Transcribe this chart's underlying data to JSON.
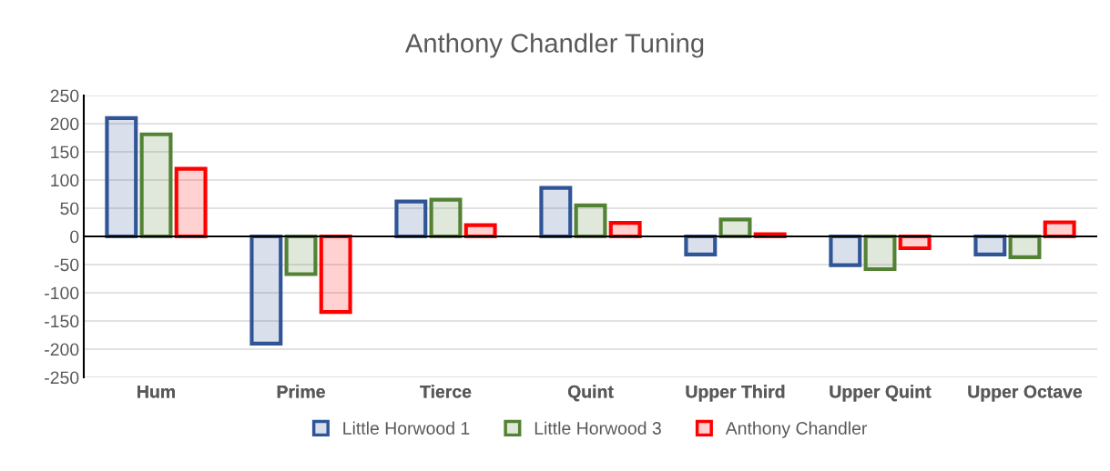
{
  "chart_data": {
    "type": "bar",
    "title": "Anthony Chandler Tuning",
    "categories": [
      "Hum",
      "Prime",
      "Tierce",
      "Quint",
      "Upper Third",
      "Upper Quint",
      "Upper Octave"
    ],
    "series": [
      {
        "name": "Little Horwood 1",
        "color": "#2f5597",
        "values": [
          210,
          -190,
          62,
          86,
          -32,
          -51,
          -32
        ]
      },
      {
        "name": "Little Horwood 3",
        "color": "#548235",
        "values": [
          181,
          -67,
          65,
          55,
          30,
          -58,
          -37
        ]
      },
      {
        "name": "Anthony Chandler",
        "color": "#ff0000",
        "values": [
          120,
          -134,
          20,
          24,
          4,
          -21,
          25
        ]
      }
    ],
    "ylim": [
      -250,
      250
    ],
    "yticks": [
      -250,
      -200,
      -150,
      -100,
      -50,
      0,
      50,
      100,
      150,
      200,
      250
    ],
    "grid": "y",
    "legend": "bottom"
  }
}
